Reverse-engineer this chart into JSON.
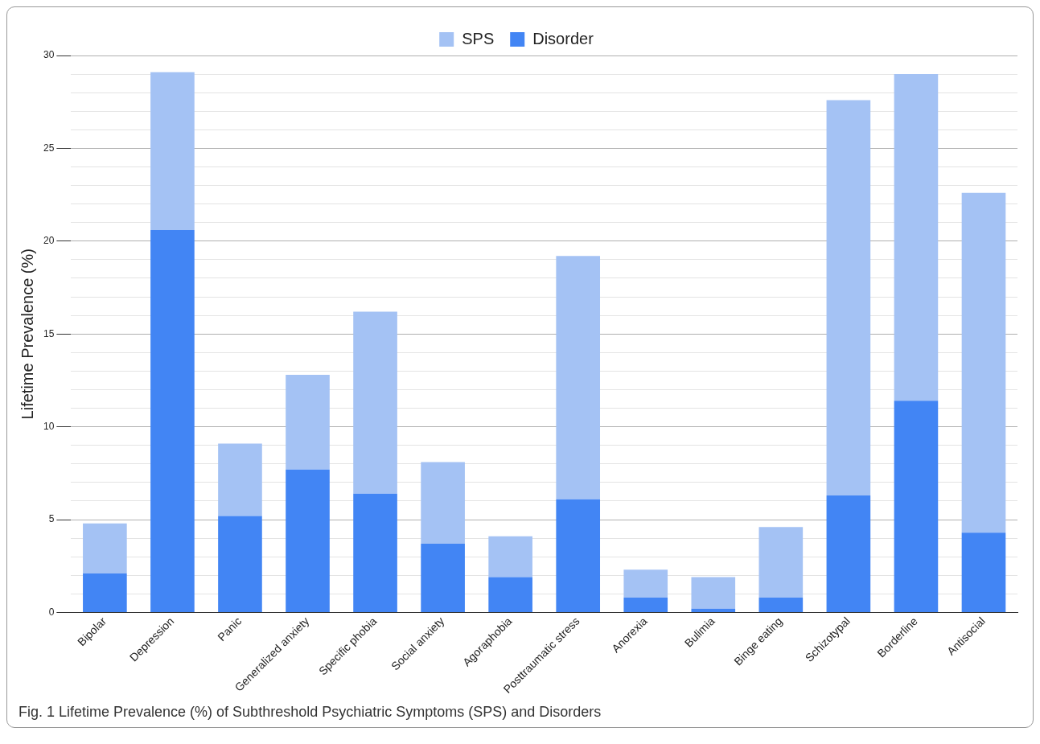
{
  "chart_data": {
    "type": "bar",
    "stacked": true,
    "ylabel": "Lifetime Prevalence (%)",
    "categories": [
      "Bipolar",
      "Depression",
      "Panic",
      "Generalized anxiety",
      "Specific phobia",
      "Social anxiety",
      "Agoraphobia",
      "Posttraumatic stress",
      "Anorexia",
      "Bulimia",
      "Binge eating",
      "Schizotypal",
      "Borderline",
      "Antisocial"
    ],
    "series": [
      {
        "name": "Disorder",
        "color": "#4285f4",
        "values": [
          2.1,
          20.6,
          5.2,
          7.7,
          6.4,
          3.7,
          1.9,
          6.1,
          0.8,
          0.2,
          0.8,
          6.3,
          11.4,
          4.3
        ]
      },
      {
        "name": "SPS",
        "color": "#a4c2f4",
        "values": [
          2.7,
          8.5,
          3.9,
          5.1,
          9.8,
          4.4,
          2.2,
          13.1,
          1.5,
          1.7,
          3.8,
          21.3,
          17.6,
          18.3
        ]
      }
    ],
    "ylim": [
      0,
      30
    ],
    "yticks": [
      0,
      {
        "value": 1,
        "label": null
      },
      {
        "value": 2,
        "label": null
      },
      {
        "value": 3,
        "label": null
      },
      {
        "value": 4,
        "label": null
      },
      5,
      {
        "value": 6,
        "label": null
      },
      {
        "value": 7,
        "label": null
      },
      {
        "value": 8,
        "label": null
      },
      {
        "value": 9,
        "label": null
      },
      10,
      {
        "value": 11,
        "label": null
      },
      {
        "value": 12,
        "label": null
      },
      {
        "value": 13,
        "label": null
      },
      {
        "value": 14,
        "label": null
      },
      15,
      {
        "value": 16,
        "label": null
      },
      {
        "value": 17,
        "label": null
      },
      {
        "value": 18,
        "label": null
      },
      {
        "value": 19,
        "label": null
      },
      20,
      {
        "value": 21,
        "label": null
      },
      {
        "value": 22,
        "label": null
      },
      {
        "value": 23,
        "label": null
      },
      {
        "value": 24,
        "label": null
      },
      25,
      {
        "value": 26,
        "label": null
      },
      {
        "value": 27,
        "label": null
      },
      {
        "value": 28,
        "label": null
      },
      {
        "value": 29,
        "label": null
      },
      30
    ],
    "grid": "y",
    "legend": "top",
    "annotations": [
      "Fig. 1  Lifetime Prevalence (%) of Subthreshold Psychiatric Symptoms (SPS) and Disorders"
    ]
  }
}
